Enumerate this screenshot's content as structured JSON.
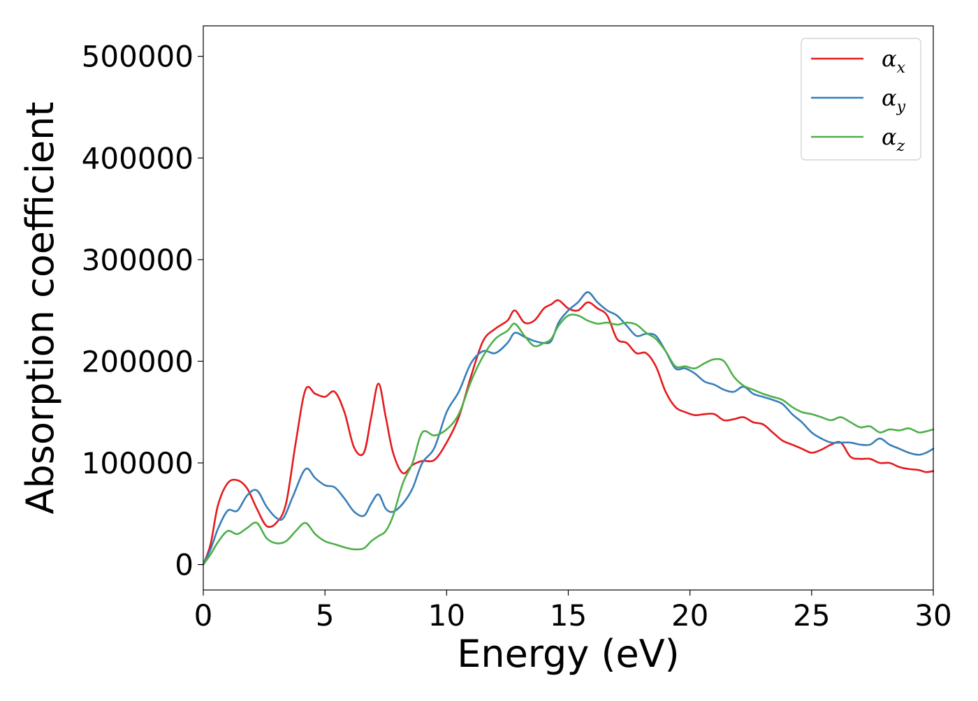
{
  "chart_data": {
    "type": "line",
    "xlabel": "Energy (eV)",
    "ylabel": "Absorption coefficient",
    "xlim": [
      0,
      30
    ],
    "ylim": [
      -25000,
      530000
    ],
    "xticks": [
      0,
      5,
      10,
      15,
      20,
      25,
      30
    ],
    "yticks": [
      0,
      100000,
      200000,
      300000,
      400000,
      500000
    ],
    "grid": false,
    "legend_position": "top-right",
    "series": [
      {
        "name": "α",
        "name_subscript": "x",
        "color": "#e41a1c",
        "x": [
          0,
          0.3,
          0.6,
          1.0,
          1.4,
          1.8,
          2.2,
          2.6,
          3.0,
          3.4,
          3.8,
          4.2,
          4.6,
          5.0,
          5.4,
          5.8,
          6.2,
          6.6,
          6.9,
          7.2,
          7.5,
          7.8,
          8.2,
          8.6,
          9.0,
          9.5,
          10.0,
          10.5,
          11.0,
          11.5,
          12.0,
          12.5,
          12.8,
          13.2,
          13.6,
          14.0,
          14.3,
          14.6,
          15.0,
          15.4,
          15.8,
          16.2,
          16.6,
          17.0,
          17.4,
          17.8,
          18.2,
          18.6,
          19.0,
          19.4,
          19.8,
          20.2,
          20.6,
          21.0,
          21.4,
          21.8,
          22.2,
          22.6,
          23.0,
          23.4,
          23.8,
          24.2,
          24.6,
          25.0,
          25.4,
          25.8,
          26.2,
          26.6,
          27.0,
          27.4,
          27.8,
          28.2,
          28.6,
          29.0,
          29.4,
          29.7,
          30.0
        ],
        "y": [
          0,
          20000,
          58000,
          80000,
          83000,
          75000,
          55000,
          38000,
          41000,
          60000,
          120000,
          172000,
          168000,
          165000,
          170000,
          150000,
          115000,
          110000,
          145000,
          178000,
          145000,
          110000,
          90000,
          98000,
          102000,
          103000,
          120000,
          145000,
          185000,
          220000,
          232000,
          240000,
          250000,
          238000,
          240000,
          252000,
          256000,
          260000,
          252000,
          250000,
          258000,
          252000,
          245000,
          222000,
          218000,
          208000,
          208000,
          195000,
          170000,
          155000,
          150000,
          147000,
          148000,
          148000,
          142000,
          143000,
          145000,
          140000,
          138000,
          130000,
          122000,
          118000,
          114000,
          110000,
          113000,
          118000,
          120000,
          106000,
          104000,
          104000,
          100000,
          100000,
          96000,
          94000,
          93000,
          91000,
          92000
        ]
      },
      {
        "name": "α",
        "name_subscript": "y",
        "color": "#377eb8",
        "x": [
          0,
          0.3,
          0.6,
          1.0,
          1.4,
          1.8,
          2.2,
          2.6,
          3.0,
          3.3,
          3.7,
          4.2,
          4.6,
          5.0,
          5.4,
          5.8,
          6.2,
          6.6,
          6.9,
          7.2,
          7.5,
          7.8,
          8.2,
          8.6,
          9.0,
          9.5,
          10.0,
          10.5,
          11.0,
          11.5,
          12.0,
          12.5,
          12.8,
          13.2,
          13.6,
          14.0,
          14.3,
          14.6,
          15.0,
          15.4,
          15.8,
          16.2,
          16.6,
          17.0,
          17.4,
          17.8,
          18.2,
          18.6,
          19.0,
          19.4,
          19.8,
          20.2,
          20.6,
          21.0,
          21.4,
          21.8,
          22.2,
          22.6,
          23.0,
          23.4,
          23.8,
          24.2,
          24.6,
          25.0,
          25.4,
          25.8,
          26.2,
          26.6,
          27.0,
          27.4,
          27.8,
          28.2,
          28.6,
          29.0,
          29.4,
          29.7,
          30.0
        ],
        "y": [
          0,
          15000,
          35000,
          53000,
          53000,
          68000,
          73000,
          57000,
          46000,
          46000,
          68000,
          94000,
          85000,
          78000,
          76000,
          65000,
          52000,
          48000,
          60000,
          69000,
          55000,
          52000,
          60000,
          75000,
          100000,
          115000,
          150000,
          170000,
          198000,
          210000,
          208000,
          218000,
          228000,
          224000,
          220000,
          218000,
          220000,
          238000,
          250000,
          258000,
          268000,
          258000,
          250000,
          245000,
          235000,
          225000,
          227000,
          225000,
          210000,
          193000,
          193000,
          188000,
          180000,
          177000,
          172000,
          170000,
          175000,
          168000,
          165000,
          162000,
          158000,
          148000,
          140000,
          130000,
          124000,
          120000,
          120000,
          120000,
          118000,
          118000,
          124000,
          118000,
          114000,
          110000,
          108000,
          110000,
          114000
        ]
      },
      {
        "name": "α",
        "name_subscript": "z",
        "color": "#4daf4a",
        "x": [
          0,
          0.3,
          0.6,
          1.0,
          1.4,
          1.8,
          2.2,
          2.6,
          3.0,
          3.4,
          3.8,
          4.2,
          4.6,
          5.0,
          5.4,
          5.8,
          6.2,
          6.6,
          6.9,
          7.2,
          7.5,
          7.8,
          8.2,
          8.6,
          9.0,
          9.5,
          10.0,
          10.5,
          11.0,
          11.5,
          12.0,
          12.5,
          12.8,
          13.2,
          13.6,
          14.0,
          14.3,
          14.6,
          15.0,
          15.4,
          15.8,
          16.2,
          16.6,
          17.0,
          17.4,
          17.8,
          18.2,
          18.6,
          19.0,
          19.4,
          19.8,
          20.2,
          20.6,
          21.0,
          21.4,
          21.8,
          22.2,
          22.6,
          23.0,
          23.4,
          23.8,
          24.2,
          24.6,
          25.0,
          25.4,
          25.8,
          26.2,
          26.6,
          27.0,
          27.4,
          27.8,
          28.2,
          28.6,
          29.0,
          29.4,
          29.7,
          30.0
        ],
        "y": [
          0,
          10000,
          22000,
          33000,
          30000,
          36000,
          41000,
          26000,
          21000,
          23000,
          33000,
          41000,
          30000,
          23000,
          20000,
          17000,
          15000,
          16000,
          23000,
          28000,
          33000,
          48000,
          80000,
          100000,
          130000,
          127000,
          133000,
          148000,
          180000,
          205000,
          222000,
          230000,
          237000,
          225000,
          215000,
          218000,
          222000,
          235000,
          245000,
          245000,
          240000,
          237000,
          238000,
          236000,
          238000,
          236000,
          228000,
          222000,
          210000,
          195000,
          195000,
          193000,
          198000,
          202000,
          200000,
          185000,
          176000,
          172000,
          168000,
          165000,
          162000,
          155000,
          150000,
          148000,
          145000,
          142000,
          145000,
          140000,
          135000,
          136000,
          130000,
          133000,
          132000,
          134000,
          130000,
          131000,
          133000
        ]
      }
    ]
  }
}
